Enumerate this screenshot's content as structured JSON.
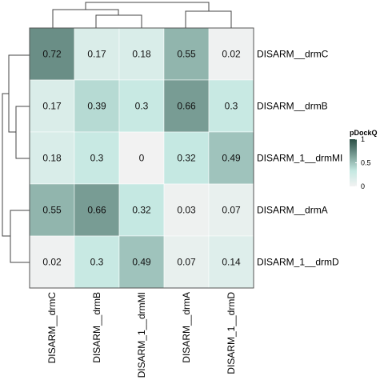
{
  "chart_data": {
    "type": "heatmap",
    "row_labels": [
      "DISARM__drmC",
      "DISARM__drmB",
      "DISARM_1__drmMI",
      "DISARM__drmA",
      "DISARM_1__drmD"
    ],
    "col_labels": [
      "DISARM__drmC",
      "DISARM__drmB",
      "DISARM_1__drmMI",
      "DISARM__drmA",
      "DISARM_1__drmD"
    ],
    "values": [
      [
        0.72,
        0.17,
        0.18,
        0.55,
        0.02
      ],
      [
        0.17,
        0.39,
        0.3,
        0.66,
        0.3
      ],
      [
        0.18,
        0.3,
        0,
        0.32,
        0.49
      ],
      [
        0.55,
        0.66,
        0.32,
        0.03,
        0.07
      ],
      [
        0.02,
        0.3,
        0.49,
        0.07,
        0.14
      ]
    ],
    "display_values": [
      [
        "0.72",
        "0.17",
        "0.18",
        "0.55",
        "0.02"
      ],
      [
        "0.17",
        "0.39",
        "0.3",
        "0.66",
        "0.3"
      ],
      [
        "0.18",
        "0.3",
        "0",
        "0.32",
        "0.49"
      ],
      [
        "0.55",
        "0.66",
        "0.32",
        "0.03",
        "0.07"
      ],
      [
        "0.02",
        "0.3",
        "0.49",
        "0.07",
        "0.14"
      ]
    ],
    "value_range": [
      0,
      1
    ],
    "color_scale": {
      "low": "#f2f2f2",
      "mid_value": 0.33,
      "mid": "#c4e8e1",
      "high": "#2a4e44"
    },
    "legend": {
      "title": "pDockQ",
      "ticks": [
        "1",
        "0.5",
        "0"
      ],
      "tick_values": [
        1,
        0.5,
        0
      ],
      "placement": "right"
    },
    "row_dendrogram": true,
    "col_dendrogram": true
  }
}
